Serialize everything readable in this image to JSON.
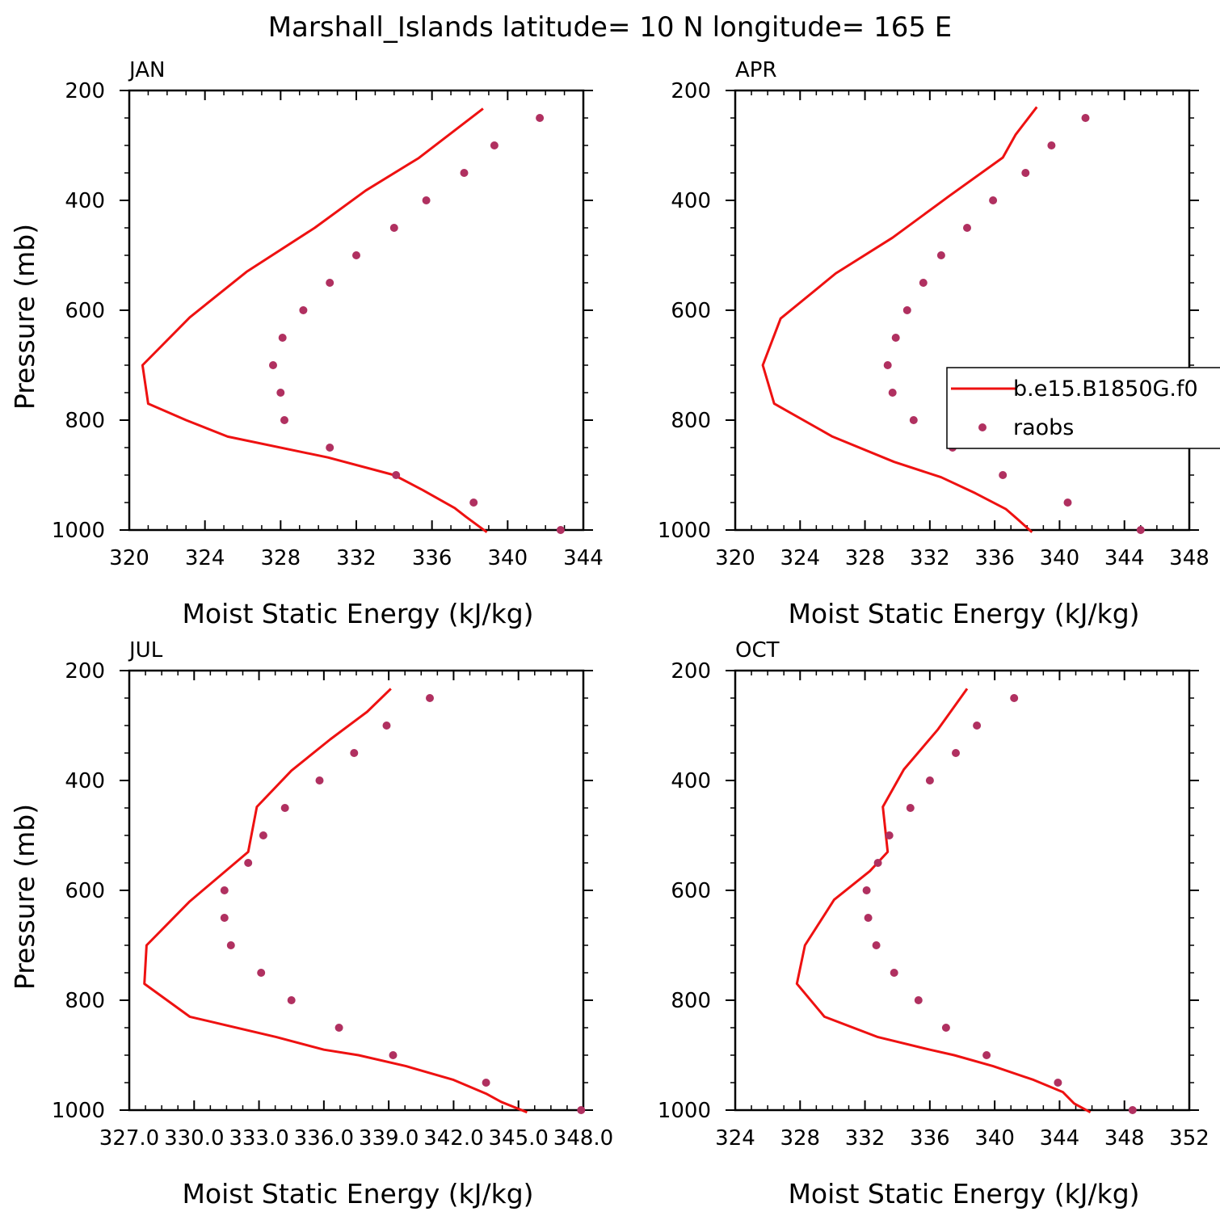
{
  "figure_title": "Marshall_Islands  latitude= 10 N longitude= 165 E",
  "colors": {
    "model": "#ee1111",
    "obs": "#b03060",
    "axis": "#000000"
  },
  "legend": {
    "model_label": "b.e15.B1850G.f0",
    "obs_label": "raobs",
    "placement": "inside right of APR panel"
  },
  "chart_data": [
    {
      "type": "line",
      "panel": "JAN",
      "title": "JAN",
      "xlabel": "Moist Static Energy (kJ/kg)",
      "ylabel": "Pressure (mb)",
      "xlim": [
        320,
        344
      ],
      "ylim": [
        1000,
        200
      ],
      "xticks": [
        "320",
        "324",
        "328",
        "332",
        "336",
        "340",
        "344"
      ],
      "yticks": [
        "200",
        "400",
        "600",
        "800",
        "1000"
      ],
      "series": [
        {
          "kind": "line",
          "points": [
            [
              338.9,
              1004
            ],
            [
              337.8,
              976
            ],
            [
              337.2,
              960
            ],
            [
              335.5,
              927
            ],
            [
              334,
              900
            ],
            [
              330.5,
              868
            ],
            [
              325.2,
              830
            ],
            [
              323,
              800
            ],
            [
              321,
              770
            ],
            [
              320.7,
              700
            ],
            [
              323.2,
              613
            ],
            [
              326.2,
              530
            ],
            [
              329.8,
              450
            ],
            [
              332.5,
              382
            ],
            [
              335.3,
              323
            ],
            [
              338.7,
              233
            ]
          ]
        },
        {
          "kind": "scatter",
          "points": [
            [
              342.8,
              1000
            ],
            [
              338.2,
              950
            ],
            [
              334.1,
              900
            ],
            [
              330.6,
              850
            ],
            [
              328.2,
              800
            ],
            [
              328,
              750
            ],
            [
              327.6,
              700
            ],
            [
              328.1,
              650
            ],
            [
              329.2,
              600
            ],
            [
              330.6,
              550
            ],
            [
              332,
              500
            ],
            [
              334,
              450
            ],
            [
              335.7,
              400
            ],
            [
              337.7,
              350
            ],
            [
              339.3,
              300
            ],
            [
              341.7,
              250
            ]
          ]
        }
      ]
    },
    {
      "type": "line",
      "panel": "APR",
      "title": "APR",
      "xlabel": "Moist Static Energy (kJ/kg)",
      "ylabel": "",
      "xlim": [
        320,
        348
      ],
      "ylim": [
        1000,
        200
      ],
      "xticks": [
        "320",
        "324",
        "328",
        "332",
        "336",
        "340",
        "344",
        "348"
      ],
      "yticks": [
        "200",
        "400",
        "600",
        "800",
        "1000"
      ],
      "series": [
        {
          "kind": "line",
          "points": [
            [
              338.3,
              1004
            ],
            [
              337.4,
              980
            ],
            [
              336.7,
              962
            ],
            [
              334.8,
              933
            ],
            [
              332.7,
              904
            ],
            [
              329.8,
              876
            ],
            [
              326,
              830
            ],
            [
              322.4,
              770
            ],
            [
              321.7,
              700
            ],
            [
              322.8,
              615
            ],
            [
              326.2,
              533
            ],
            [
              329.7,
              468
            ],
            [
              333.2,
              392
            ],
            [
              336.5,
              322
            ],
            [
              337.3,
              280
            ],
            [
              338.6,
              230
            ]
          ]
        },
        {
          "kind": "scatter",
          "points": [
            [
              345,
              1000
            ],
            [
              340.5,
              950
            ],
            [
              336.5,
              900
            ],
            [
              333.4,
              850
            ],
            [
              331,
              800
            ],
            [
              329.7,
              750
            ],
            [
              329.4,
              700
            ],
            [
              329.9,
              650
            ],
            [
              330.6,
              600
            ],
            [
              331.6,
              550
            ],
            [
              332.7,
              500
            ],
            [
              334.3,
              450
            ],
            [
              335.9,
              400
            ],
            [
              337.9,
              350
            ],
            [
              339.5,
              300
            ],
            [
              341.6,
              250
            ]
          ]
        }
      ]
    },
    {
      "type": "line",
      "panel": "JUL",
      "title": "JUL",
      "xlabel": "Moist Static Energy (kJ/kg)",
      "ylabel": "Pressure (mb)",
      "xlim": [
        327,
        348
      ],
      "ylim": [
        1000,
        200
      ],
      "xticks": [
        "327.0",
        "330.0",
        "333.0",
        "336.0",
        "339.0",
        "342.0",
        "345.0",
        "348.0"
      ],
      "yticks": [
        "200",
        "400",
        "600",
        "800",
        "1000"
      ],
      "series": [
        {
          "kind": "line",
          "points": [
            [
              345.4,
              1004
            ],
            [
              344.2,
              985
            ],
            [
              343.5,
              970
            ],
            [
              342,
              945
            ],
            [
              339.8,
              920
            ],
            [
              337.6,
              900
            ],
            [
              336,
              890
            ],
            [
              333.8,
              867
            ],
            [
              329.8,
              830
            ],
            [
              327.7,
              770
            ],
            [
              327.8,
              700
            ],
            [
              329.8,
              620
            ],
            [
              332.5,
              530
            ],
            [
              332.9,
              448
            ],
            [
              334.5,
              382
            ],
            [
              336.3,
              325
            ],
            [
              338,
              275
            ],
            [
              339.1,
              233
            ]
          ]
        },
        {
          "kind": "scatter",
          "points": [
            [
              347.9,
              1000
            ],
            [
              343.5,
              950
            ],
            [
              339.2,
              900
            ],
            [
              336.7,
              850
            ],
            [
              334.5,
              800
            ],
            [
              333.1,
              750
            ],
            [
              331.7,
              700
            ],
            [
              331.4,
              650
            ],
            [
              331.4,
              600
            ],
            [
              332.5,
              550
            ],
            [
              333.2,
              500
            ],
            [
              334.2,
              450
            ],
            [
              335.8,
              400
            ],
            [
              337.4,
              350
            ],
            [
              338.9,
              300
            ],
            [
              340.9,
              250
            ]
          ]
        }
      ]
    },
    {
      "type": "line",
      "panel": "OCT",
      "title": "OCT",
      "xlabel": "Moist Static Energy (kJ/kg)",
      "ylabel": "",
      "xlim": [
        324,
        352
      ],
      "ylim": [
        1000,
        200
      ],
      "xticks": [
        "324",
        "328",
        "332",
        "336",
        "340",
        "344",
        "348",
        "352"
      ],
      "yticks": [
        "200",
        "400",
        "600",
        "800",
        "1000"
      ],
      "series": [
        {
          "kind": "line",
          "points": [
            [
              345.9,
              1004
            ],
            [
              344.9,
              988
            ],
            [
              344.2,
              967
            ],
            [
              342.4,
              945
            ],
            [
              339.9,
              920
            ],
            [
              337.5,
              900
            ],
            [
              336,
              890
            ],
            [
              332.8,
              867
            ],
            [
              329.5,
              830
            ],
            [
              327.8,
              770
            ],
            [
              328.3,
              700
            ],
            [
              330.1,
              617
            ],
            [
              332.3,
              565
            ],
            [
              333.4,
              530
            ],
            [
              333.1,
              448
            ],
            [
              334.4,
              380
            ],
            [
              336.5,
              307
            ],
            [
              338.3,
              233
            ]
          ]
        },
        {
          "kind": "scatter",
          "points": [
            [
              348.5,
              1000
            ],
            [
              343.9,
              950
            ],
            [
              339.5,
              900
            ],
            [
              337,
              850
            ],
            [
              335.3,
              800
            ],
            [
              333.8,
              750
            ],
            [
              332.7,
              700
            ],
            [
              332.2,
              650
            ],
            [
              332.1,
              600
            ],
            [
              332.8,
              550
            ],
            [
              333.5,
              500
            ],
            [
              334.8,
              450
            ],
            [
              336,
              400
            ],
            [
              337.6,
              350
            ],
            [
              338.9,
              300
            ],
            [
              341.2,
              250
            ]
          ]
        }
      ]
    }
  ]
}
